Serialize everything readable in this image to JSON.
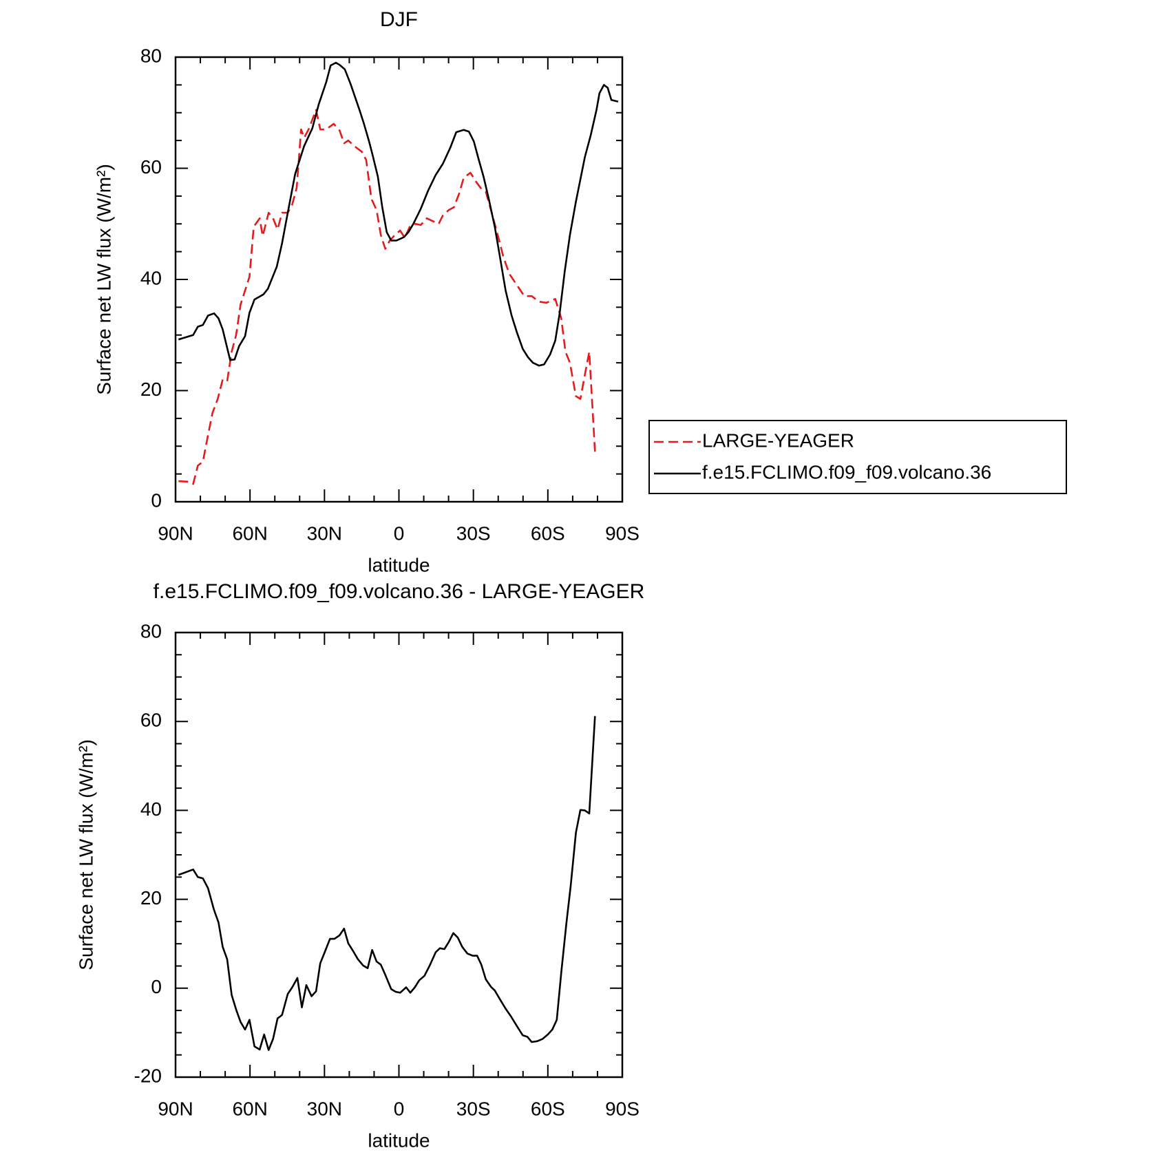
{
  "chart_data": [
    {
      "type": "line",
      "title": "DJF",
      "xlabel": "latitude",
      "ylabel": "Surface net LW flux (W/m²)",
      "xlim": [
        90,
        -90
      ],
      "ylim": [
        0,
        80
      ],
      "xticks": [
        {
          "value": 90,
          "label": "90N"
        },
        {
          "value": 60,
          "label": "60N"
        },
        {
          "value": 30,
          "label": "30N"
        },
        0,
        {
          "value": -30,
          "label": "30S"
        },
        {
          "value": -60,
          "label": "60S"
        },
        {
          "value": -90,
          "label": "90S"
        }
      ],
      "xminorticks": [
        80,
        70,
        50,
        40,
        20,
        10,
        -10,
        -20,
        -40,
        -50,
        -70,
        -80
      ],
      "yticks": [
        0,
        20,
        40,
        60,
        80
      ],
      "yminorticks": [
        5,
        10,
        15,
        25,
        30,
        35,
        45,
        50,
        55,
        65,
        70,
        75
      ],
      "legend": "outside right",
      "series": [
        {
          "name": "LARGE-YEAGER",
          "color": "#e41a1c",
          "dashed": true,
          "x": [
            88.8,
            84.6,
            82.9,
            81,
            79,
            76.9,
            75.1,
            73,
            71,
            69.2,
            67.4,
            65.6,
            63.8,
            62,
            60.2,
            58.5,
            56.1,
            54.9,
            52.5,
            50.7,
            48.9,
            47.1,
            44.8,
            43,
            41.2,
            39.4,
            38.2,
            36.4,
            33.4,
            31.7,
            29.3,
            26.3,
            23.9,
            22.1,
            20.4,
            18,
            15,
            13.2,
            11.1,
            9,
            7.3,
            5.5,
            3.7,
            1.6,
            -0.5,
            -2.3,
            -4.4,
            -6.7,
            -8.8,
            -11.2,
            -13.6,
            -16,
            -17.7,
            -20.1,
            -22.2,
            -24.3,
            -26.1,
            -28.8,
            -31.2,
            -33.2,
            -35,
            -37.4,
            -40.1,
            -42.1,
            -44.5,
            -47.5,
            -50.5,
            -53.5,
            -56.4,
            -59.4,
            -63,
            -65.4,
            -67.1,
            -68.9,
            -71.3,
            -73.1,
            -75.2,
            -76.7,
            -79
          ],
          "values": [
            3.7,
            3.6,
            3.2,
            6.5,
            7.2,
            12,
            16,
            18.5,
            22,
            21.7,
            27,
            30,
            35.5,
            38,
            40.5,
            49.5,
            51,
            47.8,
            52,
            51,
            49,
            52,
            52,
            53.5,
            56.5,
            67,
            65.5,
            67,
            70.5,
            67,
            67,
            68,
            66.8,
            64.5,
            65,
            64,
            63,
            61.5,
            54.5,
            52.5,
            48,
            45.5,
            47,
            48,
            48.8,
            47.5,
            49.5,
            50,
            49.8,
            51,
            50.5,
            50,
            51.5,
            52.5,
            53,
            55.5,
            58.3,
            59.2,
            57.5,
            56.3,
            55.8,
            52,
            47.5,
            44,
            41,
            39,
            37,
            37,
            36,
            35.8,
            36.5,
            33,
            27,
            25,
            19,
            18.5,
            23.5,
            27,
            9
          ]
        },
        {
          "name": "f.e15.FCLIMO.f09_f09.volcano.36",
          "color": "#000000",
          "dashed": false,
          "x": [
            88.8,
            82.9,
            81,
            79,
            76.9,
            74.5,
            72.7,
            71,
            68,
            66.2,
            64.4,
            62,
            60.2,
            58.2,
            54.6,
            52.8,
            49.2,
            47.1,
            44.8,
            41.8,
            38.2,
            34.9,
            32.3,
            29.3,
            27.5,
            25.4,
            23.9,
            21.8,
            19.5,
            15.9,
            14.1,
            12,
            10.5,
            8.5,
            6.7,
            4.9,
            3.1,
            1,
            -2,
            -3.8,
            -5.8,
            -8.8,
            -11.8,
            -14.8,
            -17.7,
            -20.7,
            -23.1,
            -26.1,
            -28.2,
            -30.2,
            -32,
            -34.1,
            -36.2,
            -38.6,
            -40.9,
            -43,
            -45.4,
            -47.5,
            -49.9,
            -52,
            -54,
            -56.4,
            -58.5,
            -60.9,
            -63,
            -64.8,
            -66.8,
            -68.9,
            -71.3,
            -74.9,
            -77.3,
            -79.6,
            -80.8,
            -82.6,
            -84.1,
            -85.6,
            -88.3
          ],
          "values": [
            29.2,
            30,
            31.5,
            31.8,
            33.5,
            33.9,
            33,
            31,
            25.5,
            25.6,
            28,
            29.8,
            34,
            36.4,
            37.3,
            38.3,
            42.3,
            46.5,
            52,
            59,
            64,
            67.2,
            71.5,
            75.5,
            78.5,
            79,
            78.6,
            77.8,
            75.2,
            70.5,
            68,
            64.8,
            62.2,
            58.5,
            53,
            48.5,
            47,
            47,
            47.6,
            48.5,
            50,
            52.7,
            56,
            58.8,
            60.8,
            63.7,
            66.5,
            66.9,
            66.6,
            64.8,
            61.8,
            58.5,
            54.5,
            49.5,
            43.5,
            38,
            33.5,
            30.5,
            27.5,
            26,
            25,
            24.5,
            24.7,
            26.5,
            29,
            34,
            41.5,
            48,
            54,
            62,
            66,
            70.5,
            73.5,
            75,
            74.5,
            72.3,
            72
          ]
        }
      ]
    },
    {
      "type": "line",
      "title": "f.e15.FCLIMO.f09_f09.volcano.36 - LARGE-YEAGER",
      "xlabel": "latitude",
      "ylabel": "Surface net LW flux (W/m²)",
      "xlim": [
        90,
        -90
      ],
      "ylim": [
        -20,
        80
      ],
      "xticks": [
        {
          "value": 90,
          "label": "90N"
        },
        {
          "value": 60,
          "label": "60N"
        },
        {
          "value": 30,
          "label": "30N"
        },
        0,
        {
          "value": -30,
          "label": "30S"
        },
        {
          "value": -60,
          "label": "60S"
        },
        {
          "value": -90,
          "label": "90S"
        }
      ],
      "xminorticks": [
        80,
        70,
        50,
        40,
        20,
        10,
        -10,
        -20,
        -40,
        -50,
        -70,
        -80
      ],
      "yticks": [
        -20,
        0,
        20,
        40,
        60,
        80
      ],
      "yminorticks": [
        -15,
        -10,
        -5,
        5,
        10,
        15,
        25,
        30,
        35,
        45,
        50,
        55,
        65,
        70,
        75
      ],
      "series": [
        {
          "color": "#000000",
          "dashed": false,
          "x": [
            88.8,
            82.9,
            81,
            79,
            76.9,
            74.5,
            72.7,
            71,
            69.2,
            67.4,
            65.6,
            63.8,
            62,
            60.2,
            58.2,
            56.1,
            54.3,
            52.5,
            50.7,
            48.9,
            47.1,
            44.8,
            43,
            40.9,
            39.1,
            37.3,
            35.2,
            33.4,
            31.7,
            29.9,
            27.8,
            26,
            23.9,
            22.1,
            20.4,
            18.6,
            16.5,
            14.4,
            12.6,
            10.8,
            9,
            7.3,
            5.5,
            3.1,
            1.3,
            -0.5,
            -2.9,
            -4.6,
            -6.4,
            -8.2,
            -10.3,
            -12.4,
            -14.8,
            -16.5,
            -18.3,
            -20.1,
            -21.9,
            -23.7,
            -25.5,
            -27.6,
            -29.7,
            -31.5,
            -33.2,
            -35,
            -37.1,
            -38.6,
            -40.9,
            -43,
            -45.1,
            -47.5,
            -49.9,
            -51.7,
            -53.5,
            -55.8,
            -57.9,
            -60,
            -61.8,
            -63.6,
            -65.4,
            -67.5,
            -69.2,
            -71.3,
            -73.1,
            -74.9,
            -76.7,
            -79
          ],
          "values": [
            25.5,
            26.7,
            25,
            24.7,
            22.5,
            17.6,
            14.8,
            9.3,
            6.5,
            -1.5,
            -4.8,
            -7.6,
            -9.3,
            -7.1,
            -13.1,
            -13.8,
            -10.4,
            -13.9,
            -11.4,
            -6.8,
            -6,
            -1.3,
            0.2,
            2.3,
            -4.3,
            0.7,
            -1.8,
            -0.7,
            5.6,
            8.1,
            11.1,
            11.1,
            11.9,
            13.4,
            10.1,
            8.5,
            6.5,
            5.1,
            4.5,
            8.6,
            6,
            5.3,
            3,
            -0.2,
            -0.8,
            -1,
            0.2,
            -1,
            0.2,
            1.8,
            2.8,
            5.1,
            8.1,
            9,
            8.8,
            10.4,
            12.4,
            11.4,
            9.3,
            7.8,
            7.3,
            7.3,
            5.3,
            2,
            0.3,
            -0.5,
            -2.7,
            -4.6,
            -6.3,
            -8.5,
            -10.6,
            -10.9,
            -12.1,
            -11.9,
            -11.4,
            -10.4,
            -9.3,
            -7.1,
            3.5,
            14.8,
            23,
            35,
            40.1,
            40,
            39.3,
            61.2
          ]
        }
      ]
    }
  ]
}
